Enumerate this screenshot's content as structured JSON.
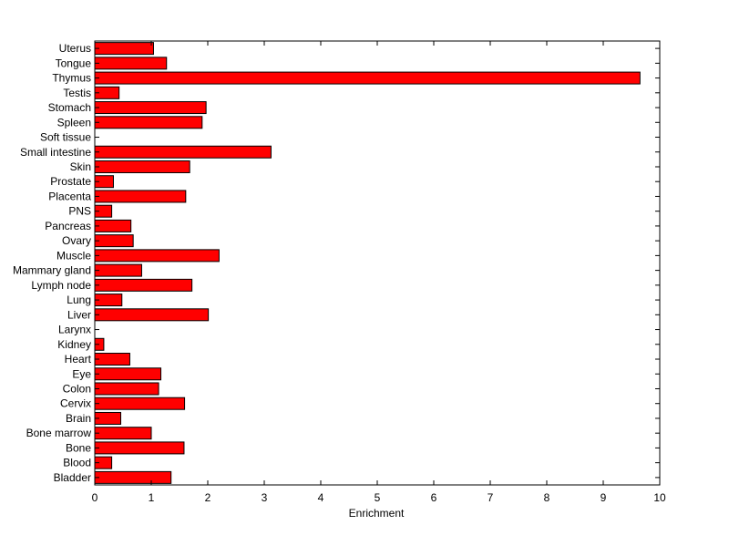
{
  "chart_data": {
    "type": "bar",
    "orientation": "horizontal",
    "title": "",
    "xlabel": "Enrichment",
    "ylabel": "",
    "xlim": [
      0,
      10
    ],
    "xticks": [
      0,
      1,
      2,
      3,
      4,
      5,
      6,
      7,
      8,
      9,
      10
    ],
    "grid": false,
    "bar_color": "#ff0000",
    "categories": [
      "Bladder",
      "Blood",
      "Bone",
      "Bone marrow",
      "Brain",
      "Cervix",
      "Colon",
      "Eye",
      "Heart",
      "Kidney",
      "Larynx",
      "Liver",
      "Lung",
      "Lymph node",
      "Mammary gland",
      "Muscle",
      "Ovary",
      "Pancreas",
      "PNS",
      "Placenta",
      "Prostate",
      "Skin",
      "Small intestine",
      "Soft tissue",
      "Spleen",
      "Stomach",
      "Testis",
      "Thymus",
      "Tongue",
      "Uterus"
    ],
    "values": [
      1.35,
      0.3,
      1.58,
      1.0,
      0.46,
      1.59,
      1.13,
      1.17,
      0.62,
      0.16,
      0.0,
      2.01,
      0.48,
      1.72,
      0.83,
      2.2,
      0.68,
      0.64,
      0.3,
      1.61,
      0.33,
      1.68,
      3.12,
      0.0,
      1.9,
      1.97,
      0.43,
      9.65,
      1.27,
      1.04
    ]
  }
}
